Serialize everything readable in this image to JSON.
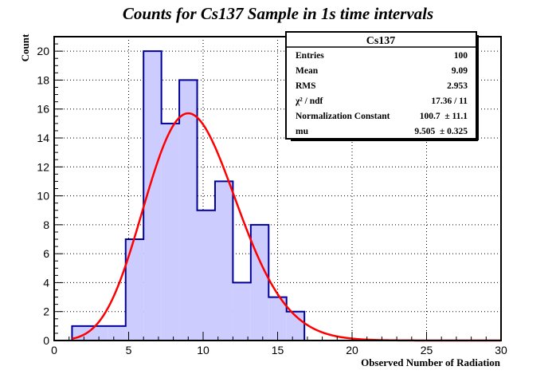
{
  "chart_data": {
    "type": "bar",
    "title": "Counts for Cs137 Sample in 1s time intervals",
    "xlabel": "Observed Number of Radiation",
    "ylabel": "Count",
    "xlim": [
      0,
      30
    ],
    "ylim": [
      0,
      21
    ],
    "grid": true,
    "x_ticks": [
      0,
      5,
      10,
      15,
      20,
      25,
      30
    ],
    "y_ticks": [
      0,
      2,
      4,
      6,
      8,
      10,
      12,
      14,
      16,
      18,
      20
    ],
    "bin_edges": [
      1.2,
      2.4,
      3.6,
      4.8,
      6.0,
      7.2,
      8.4,
      9.6,
      10.8,
      12.0,
      13.2,
      14.4,
      15.6,
      16.8,
      18.0,
      19.2,
      20.4,
      21.6,
      22.8,
      24.0,
      25.2,
      26.4,
      27.6,
      28.8,
      30.0
    ],
    "values": [
      1,
      1,
      1,
      7,
      20,
      15,
      18,
      9,
      11,
      4,
      8,
      3,
      2,
      0,
      0,
      0,
      0,
      0,
      0,
      0,
      0,
      0,
      0,
      0
    ],
    "fit": {
      "function": "poisson",
      "normalization": 100.7,
      "bin_width": 1.2,
      "mu": 9.505,
      "color": "#ff0000"
    },
    "colors": {
      "bar_fill": "#ccccff",
      "bar_outline": "#000099",
      "fit_line": "#ff0000"
    },
    "stats_box": {
      "title": "Cs137",
      "rows": [
        {
          "label": "Entries",
          "value": "100"
        },
        {
          "label": "Mean",
          "value": "9.09"
        },
        {
          "label": "RMS",
          "value": "2.953"
        },
        {
          "label": "χ² / ndf",
          "value": "17.36 / 11"
        },
        {
          "label": "Normalization Constant",
          "value": "100.7  ± 11.1"
        },
        {
          "label": "mu",
          "value": "9.505  ± 0.325"
        }
      ]
    }
  }
}
